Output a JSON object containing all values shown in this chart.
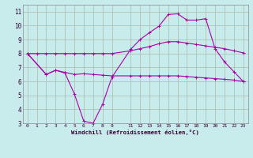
{
  "xlabel": "Windchill (Refroidissement éolien,°C)",
  "background_color": "#c8ecec",
  "grid_color": "#aabbaa",
  "line_color": "#aa00aa",
  "xlim": [
    -0.5,
    23.5
  ],
  "ylim": [
    3,
    11.5
  ],
  "yticks": [
    3,
    4,
    5,
    6,
    7,
    8,
    9,
    10,
    11
  ],
  "xticks": [
    0,
    1,
    2,
    3,
    4,
    5,
    6,
    7,
    8,
    9,
    11,
    12,
    13,
    14,
    15,
    16,
    17,
    18,
    19,
    20,
    21,
    22,
    23
  ],
  "line1_x": [
    0,
    1,
    2,
    3,
    4,
    5,
    6,
    7,
    8,
    9,
    11,
    12,
    13,
    14,
    15,
    16,
    17,
    18,
    19,
    20,
    21,
    22,
    23
  ],
  "line1_y": [
    8.0,
    8.0,
    8.0,
    8.0,
    8.0,
    8.0,
    8.0,
    8.0,
    8.0,
    8.0,
    8.2,
    8.35,
    8.5,
    8.7,
    8.85,
    8.85,
    8.75,
    8.65,
    8.55,
    8.45,
    8.35,
    8.2,
    8.05
  ],
  "line2_x": [
    0,
    2,
    3,
    4,
    5,
    6,
    7,
    8,
    9,
    11,
    12,
    13,
    14,
    15,
    16,
    17,
    18,
    19,
    20,
    21,
    22,
    23
  ],
  "line2_y": [
    8.0,
    6.5,
    6.8,
    6.6,
    5.1,
    3.15,
    3.0,
    4.35,
    6.3,
    8.3,
    9.0,
    9.5,
    9.95,
    10.8,
    10.85,
    10.4,
    10.4,
    10.5,
    8.35,
    7.4,
    6.7,
    6.0
  ],
  "line3_x": [
    0,
    2,
    3,
    4,
    5,
    6,
    7,
    8,
    9,
    11,
    12,
    13,
    14,
    15,
    16,
    17,
    18,
    19,
    20,
    21,
    22,
    23
  ],
  "line3_y": [
    8.0,
    6.5,
    6.8,
    6.65,
    6.5,
    6.55,
    6.5,
    6.45,
    6.4,
    6.4,
    6.4,
    6.4,
    6.4,
    6.4,
    6.4,
    6.35,
    6.3,
    6.25,
    6.2,
    6.15,
    6.1,
    6.0
  ]
}
